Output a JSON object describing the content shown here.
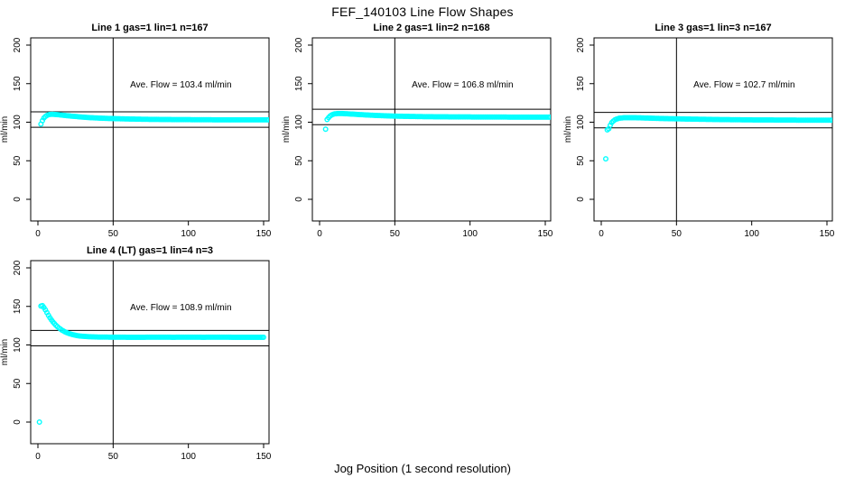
{
  "title": "FEF_140103  Line Flow Shapes",
  "xlabel": "Jog Position (1 second resolution)",
  "colors": {
    "points": "#00FFFF",
    "lines": "#000000",
    "background": "#FFFFFF",
    "text": "#000000"
  },
  "chart_data": [
    {
      "type": "scatter",
      "title": "Line 1 gas=1 lin=1 n=167",
      "ave_flow": 103.4,
      "ave_flow_label": "Ave. Flow =  103.4  ml/min",
      "ylabel": "ml/min",
      "xlim": [
        0,
        150
      ],
      "ylim": [
        0,
        200
      ],
      "xticks": [
        0,
        50,
        100,
        150
      ],
      "yticks": [
        0,
        50,
        100,
        150,
        200
      ],
      "vline_x": 50,
      "hlines": [
        113.4,
        93.4
      ],
      "points": [
        [
          2,
          97.5
        ],
        [
          3,
          102
        ],
        [
          4,
          105.5
        ],
        [
          5,
          107.5
        ],
        [
          6,
          108.8
        ],
        [
          7,
          109.6
        ],
        [
          8,
          110.1
        ],
        [
          9,
          110.3
        ],
        [
          10,
          110.3
        ],
        [
          12,
          110.0
        ],
        [
          15,
          109.4
        ],
        [
          20,
          108.3
        ],
        [
          25,
          107.4
        ],
        [
          30,
          106.6
        ],
        [
          35,
          105.9
        ],
        [
          40,
          105.4
        ],
        [
          45,
          105.0
        ],
        [
          50,
          104.7
        ],
        [
          60,
          104.2
        ],
        [
          70,
          103.8
        ],
        [
          80,
          103.6
        ],
        [
          90,
          103.4
        ],
        [
          100,
          103.3
        ],
        [
          110,
          103.2
        ],
        [
          120,
          103.1
        ],
        [
          130,
          103.1
        ],
        [
          140,
          103.0
        ],
        [
          153,
          103.0
        ]
      ]
    },
    {
      "type": "scatter",
      "title": "Line 2 gas=1 lin=2 n=168",
      "ave_flow": 106.8,
      "ave_flow_label": "Ave. Flow =  106.8  ml/min",
      "ylabel": "ml/min",
      "xlim": [
        0,
        150
      ],
      "ylim": [
        0,
        200
      ],
      "xticks": [
        0,
        50,
        100,
        150
      ],
      "yticks": [
        0,
        50,
        100,
        150,
        200
      ],
      "vline_x": 50,
      "hlines": [
        116.8,
        96.8
      ],
      "points": [
        [
          4,
          91
        ],
        [
          5,
          103.5
        ],
        [
          6,
          106
        ],
        [
          7,
          108
        ],
        [
          8,
          109.3
        ],
        [
          9,
          110.2
        ],
        [
          10,
          110.8
        ],
        [
          12,
          111.2
        ],
        [
          15,
          111.2
        ],
        [
          20,
          110.7
        ],
        [
          25,
          110.1
        ],
        [
          30,
          109.5
        ],
        [
          35,
          109.0
        ],
        [
          40,
          108.6
        ],
        [
          45,
          108.2
        ],
        [
          50,
          107.9
        ],
        [
          60,
          107.5
        ],
        [
          70,
          107.2
        ],
        [
          80,
          107.0
        ],
        [
          90,
          106.9
        ],
        [
          100,
          106.8
        ],
        [
          110,
          106.7
        ],
        [
          120,
          106.7
        ],
        [
          130,
          106.6
        ],
        [
          140,
          106.6
        ],
        [
          153,
          106.6
        ]
      ]
    },
    {
      "type": "scatter",
      "title": "Line 3 gas=1 lin=3 n=167",
      "ave_flow": 102.7,
      "ave_flow_label": "Ave. Flow =  102.7  ml/min",
      "ylabel": "ml/min",
      "xlim": [
        0,
        150
      ],
      "ylim": [
        0,
        200
      ],
      "xticks": [
        0,
        50,
        100,
        150
      ],
      "yticks": [
        0,
        50,
        100,
        150,
        200
      ],
      "vline_x": 50,
      "hlines": [
        112.7,
        92.7
      ],
      "points": [
        [
          3,
          52.5
        ],
        [
          4,
          90
        ],
        [
          5,
          91.5
        ],
        [
          6,
          96
        ],
        [
          7,
          99.5
        ],
        [
          8,
          101.5
        ],
        [
          9,
          103
        ],
        [
          10,
          104
        ],
        [
          12,
          105.2
        ],
        [
          15,
          105.8
        ],
        [
          20,
          105.9
        ],
        [
          25,
          105.7
        ],
        [
          30,
          105.4
        ],
        [
          35,
          105.1
        ],
        [
          40,
          104.8
        ],
        [
          50,
          104.4
        ],
        [
          60,
          104.0
        ],
        [
          70,
          103.7
        ],
        [
          80,
          103.4
        ],
        [
          90,
          103.2
        ],
        [
          100,
          103.0
        ],
        [
          110,
          102.9
        ],
        [
          120,
          102.8
        ],
        [
          130,
          102.7
        ],
        [
          140,
          102.7
        ],
        [
          153,
          102.6
        ]
      ]
    },
    {
      "type": "scatter",
      "title": "Line 4 (LT) gas=1 lin=4 n=3",
      "ave_flow": 108.9,
      "ave_flow_label": "Ave. Flow =  108.9  ml/min",
      "ylabel": "ml/min",
      "xlim": [
        0,
        150
      ],
      "ylim": [
        0,
        200
      ],
      "xticks": [
        0,
        50,
        100,
        150
      ],
      "yticks": [
        0,
        50,
        100,
        150,
        200
      ],
      "vline_x": 50,
      "hlines": [
        118.9,
        98.9
      ],
      "points": [
        [
          1,
          0
        ],
        [
          2,
          150.5
        ],
        [
          3,
          151
        ],
        [
          4,
          148.5
        ],
        [
          5,
          145.5
        ],
        [
          6,
          142
        ],
        [
          7,
          138.5
        ],
        [
          8,
          135.3
        ],
        [
          9,
          132.4
        ],
        [
          10,
          129.8
        ],
        [
          12,
          125.4
        ],
        [
          14,
          122
        ],
        [
          16,
          119.2
        ],
        [
          18,
          117
        ],
        [
          20,
          115.3
        ],
        [
          22,
          114
        ],
        [
          24,
          113
        ],
        [
          26,
          112.2
        ],
        [
          28,
          111.6
        ],
        [
          30,
          111.2
        ],
        [
          35,
          110.6
        ],
        [
          40,
          110.3
        ],
        [
          45,
          110.2
        ],
        [
          50,
          110.1
        ],
        [
          60,
          110.0
        ],
        [
          70,
          110.0
        ],
        [
          80,
          110.1
        ],
        [
          90,
          110.0
        ],
        [
          100,
          110.1
        ],
        [
          110,
          110.0
        ],
        [
          120,
          110.1
        ],
        [
          130,
          110.0
        ],
        [
          140,
          110.0
        ],
        [
          150,
          110.0
        ]
      ]
    }
  ]
}
